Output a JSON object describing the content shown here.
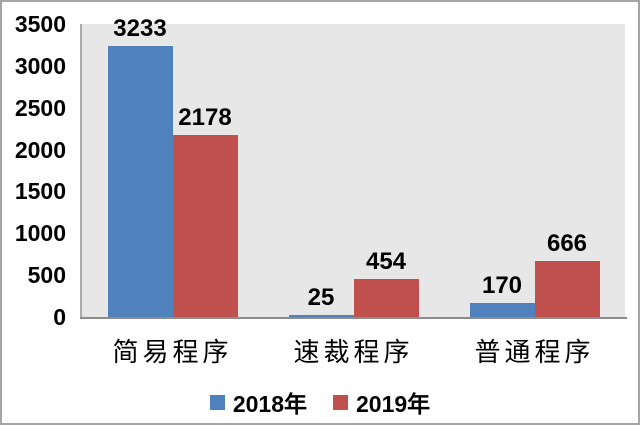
{
  "chart_data": {
    "type": "bar",
    "title": "",
    "categories": [
      "简易程序",
      "速裁程序",
      "普通程序"
    ],
    "series": [
      {
        "name": "2018年",
        "color": "#4F81BD",
        "values": [
          3233,
          25,
          170
        ]
      },
      {
        "name": "2019年",
        "color": "#C0504D",
        "values": [
          2178,
          454,
          666
        ]
      }
    ],
    "xlabel": "",
    "ylabel": "",
    "ylim": [
      0,
      3500
    ],
    "yticks": [
      0,
      500,
      1000,
      1500,
      2000,
      2500,
      3000,
      3500
    ],
    "grid": false,
    "data_labels": true,
    "legend_position": "bottom",
    "colors": {
      "plot_background": "#E7E7E7",
      "frame_border": "#A6A6A6",
      "y_axis_line": "#ABABAB",
      "x_axis_line": "#8C8C8C",
      "text": "#000000"
    }
  }
}
